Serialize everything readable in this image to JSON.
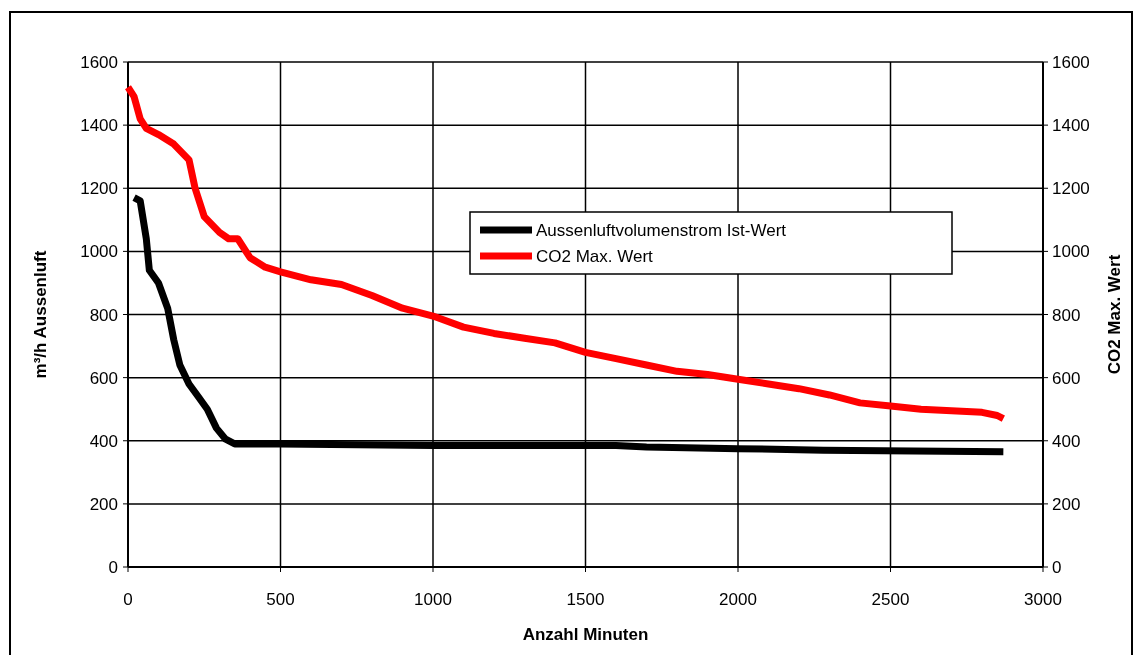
{
  "chart_data": {
    "type": "line",
    "xlabel": "Anzahl Minuten",
    "ylabel": "m³/h Aussenluft",
    "y2label": "CO2 Max. Wert",
    "xlim": [
      0,
      3000
    ],
    "xticks": [
      0,
      500,
      1000,
      1500,
      2000,
      2500,
      3000
    ],
    "ylim": [
      0,
      1600
    ],
    "yticks": [
      0,
      200,
      400,
      600,
      800,
      1000,
      1200,
      1400,
      1600
    ],
    "y2lim": [
      0,
      1600
    ],
    "y2ticks": [
      0,
      200,
      400,
      600,
      800,
      1000,
      1200,
      1400,
      1600
    ],
    "grid": true,
    "legend": "top right",
    "marker": "none",
    "line_style": "solid",
    "series": [
      {
        "name": "Aussenluftvolumenstrom Ist-Wert",
        "color": "#000000",
        "x": [
          20,
          40,
          60,
          70,
          100,
          130,
          150,
          170,
          200,
          230,
          260,
          290,
          320,
          350,
          500,
          1000,
          1600,
          1700,
          2000,
          2280,
          2870
        ],
        "values": [
          1170,
          1160,
          1040,
          940,
          900,
          820,
          720,
          640,
          580,
          540,
          500,
          440,
          405,
          390,
          390,
          385,
          385,
          380,
          375,
          370,
          365
        ]
      },
      {
        "name": "CO2 Max. Wert",
        "color": "#ff0000",
        "x": [
          0,
          20,
          40,
          60,
          100,
          150,
          200,
          220,
          250,
          300,
          330,
          360,
          400,
          450,
          500,
          600,
          700,
          800,
          900,
          1000,
          1100,
          1200,
          1300,
          1400,
          1500,
          1600,
          1700,
          1800,
          1900,
          2000,
          2100,
          2200,
          2300,
          2400,
          2500,
          2600,
          2700,
          2800,
          2850,
          2870
        ],
        "values": [
          1520,
          1490,
          1420,
          1390,
          1370,
          1340,
          1290,
          1200,
          1110,
          1060,
          1040,
          1040,
          980,
          950,
          935,
          910,
          895,
          860,
          820,
          795,
          760,
          740,
          725,
          710,
          680,
          660,
          640,
          620,
          610,
          595,
          580,
          565,
          545,
          520,
          510,
          500,
          495,
          490,
          480,
          470
        ]
      }
    ]
  }
}
